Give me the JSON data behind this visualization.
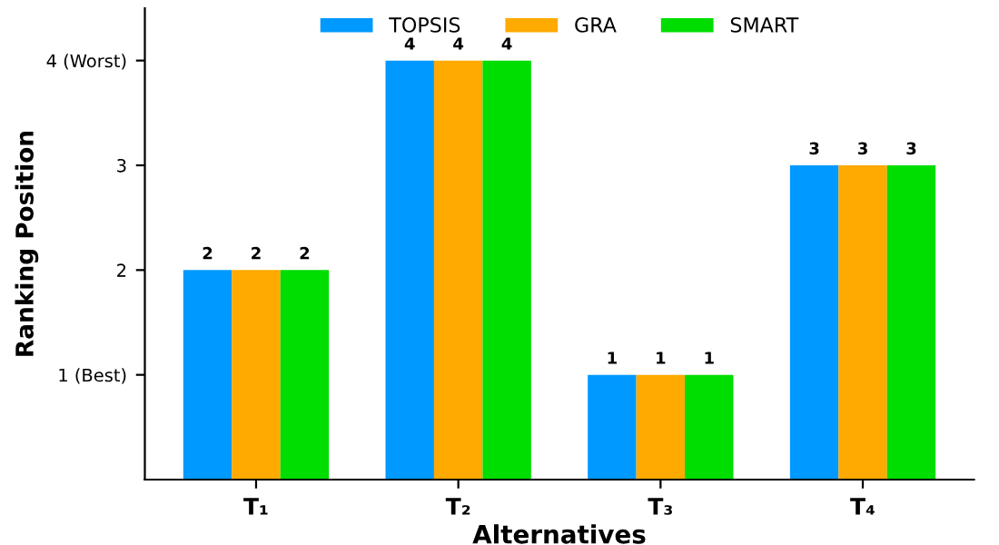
{
  "chart_data": {
    "type": "bar",
    "xlabel": "Alternatives",
    "ylabel": "Ranking Position",
    "categories": [
      "T₁",
      "T₂",
      "T₃",
      "T₄"
    ],
    "series": [
      {
        "name": "TOPSIS",
        "color": "#0099ff",
        "values": [
          2,
          4,
          1,
          3
        ]
      },
      {
        "name": "GRA",
        "color": "#ffaa00",
        "values": [
          2,
          4,
          1,
          3
        ]
      },
      {
        "name": "SMART",
        "color": "#00dd00",
        "values": [
          2,
          4,
          1,
          3
        ]
      }
    ],
    "ylim": [
      0,
      4.5
    ],
    "yticks": [
      {
        "value": 1,
        "label": "1 (Best)"
      },
      2,
      3,
      {
        "value": 4,
        "label": "4 (Worst)"
      }
    ],
    "data_labels": true,
    "legend": "top",
    "grid": false
  }
}
